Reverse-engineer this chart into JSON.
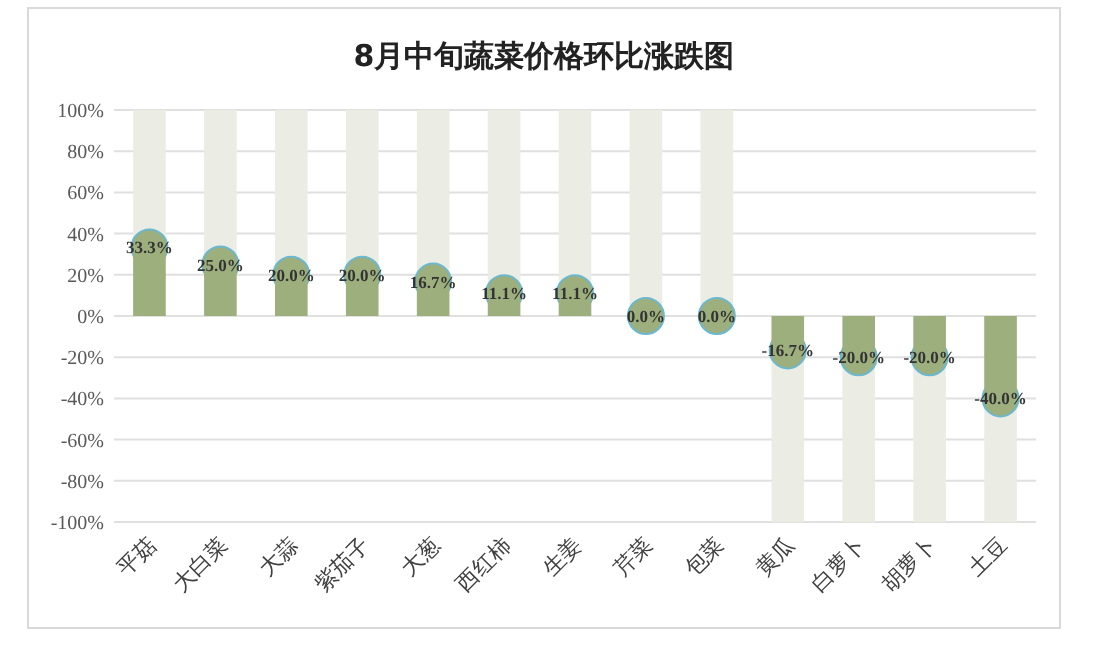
{
  "chart_data": {
    "type": "bar",
    "title": "8月中旬蔬菜价格环比涨跌图",
    "stacked": true,
    "categories": [
      "平菇",
      "大白菜",
      "大蒜",
      "紫茄子",
      "大葱",
      "西红柿",
      "生姜",
      "芹菜",
      "包菜",
      "黄瓜",
      "白萝卜",
      "胡萝卜",
      "土豆"
    ],
    "series": [
      {
        "color": "#9caf7d",
        "values": [
          33.3,
          25.0,
          20.0,
          20.0,
          16.7,
          11.1,
          11.1,
          0.0,
          0.0,
          -16.7,
          -20.0,
          -20.0,
          -40.0
        ]
      },
      {
        "color": "#ebede4",
        "values": [
          66.7,
          75.0,
          80.0,
          80.0,
          83.3,
          88.9,
          88.9,
          100.0,
          100.0,
          -83.3,
          -80.0,
          -80.0,
          -60.0
        ]
      },
      {
        "type": "scatter",
        "color": "#9caf7d",
        "marker": "circle",
        "values": [
          33.3,
          25.0,
          20.0,
          20.0,
          16.7,
          11.1,
          11.1,
          0.0,
          0.0,
          -16.7,
          -20.0,
          -20.0,
          -40.0
        ],
        "value_labels": [
          "33.3%",
          "25.0%",
          "20.0%",
          "20.0%",
          "16.7%",
          "11.1%",
          "11.1%",
          "0.0%",
          "0.0%",
          "-16.7%",
          "-20.0%",
          "-20.0%",
          "-40.0%"
        ]
      }
    ],
    "ylim": [
      -100,
      100
    ],
    "yticks": [
      {
        "value": 100,
        "label": "100%"
      },
      {
        "value": 80,
        "label": "80%"
      },
      {
        "value": 60,
        "label": "60%"
      },
      {
        "value": 40,
        "label": "40%"
      },
      {
        "value": 20,
        "label": "20%"
      },
      {
        "value": 0,
        "label": "0%"
      },
      {
        "value": -20,
        "label": "-20%"
      },
      {
        "value": -40,
        "label": "-40%"
      },
      {
        "value": -60,
        "label": "-60%"
      },
      {
        "value": -80,
        "label": "-80%"
      },
      {
        "value": -100,
        "label": "-100%"
      }
    ],
    "grid": "y"
  }
}
